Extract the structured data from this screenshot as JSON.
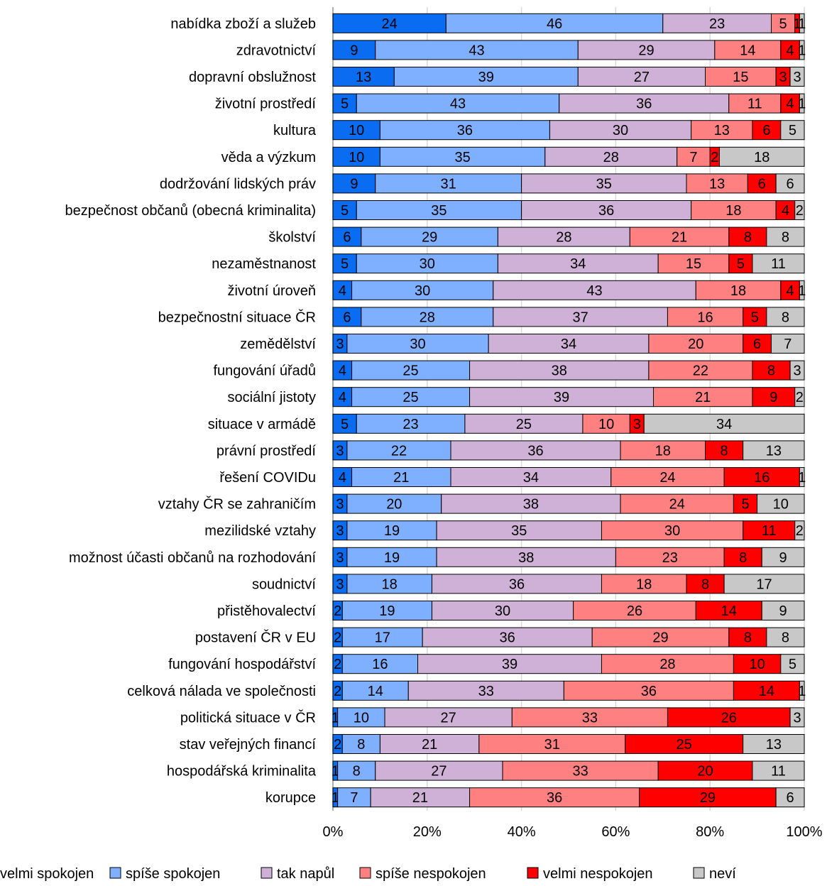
{
  "chart_data": {
    "type": "bar",
    "orientation": "horizontal",
    "stacked": "percent",
    "title": "",
    "xlabel": "",
    "ylabel": "",
    "xlim": [
      0,
      100
    ],
    "x_ticks": [
      "0%",
      "20%",
      "40%",
      "60%",
      "80%",
      "100%"
    ],
    "grid": "vertical",
    "legend_position": "bottom",
    "categories": [
      "nabídka zboží a služeb",
      "zdravotnictví",
      "dopravní obslužnost",
      "životní prostředí",
      "kultura",
      "věda a výzkum",
      "dodržování lidských práv",
      "bezpečnost občanů (obecná kriminalita)",
      "školství",
      "nezaměstnanost",
      "životní úroveň",
      "bezpečnostní situace ČR",
      "zemědělství",
      "fungování úřadů",
      "sociální jistoty",
      "situace v armádě",
      "právní prostředí",
      "řešení COVIDu",
      "vztahy ČR se zahraničím",
      "mezilidské vztahy",
      "možnost účasti občanů na rozhodování",
      "soudnictví",
      "přistěhovalectví",
      "postavení ČR v EU",
      "fungování hospodářství",
      "celková nálada ve společnosti",
      "politická situace v ČR",
      "stav veřejných financí",
      "hospodářská kriminalita",
      "korupce"
    ],
    "series": [
      {
        "name": "velmi spokojen",
        "color": "#0a6cf0",
        "values": [
          24,
          9,
          13,
          5,
          10,
          10,
          9,
          5,
          6,
          5,
          4,
          6,
          3,
          4,
          4,
          5,
          3,
          4,
          3,
          3,
          3,
          3,
          2,
          2,
          2,
          2,
          1,
          2,
          1,
          1
        ]
      },
      {
        "name": "spíše spokojen",
        "color": "#7fb0ff",
        "values": [
          46,
          43,
          39,
          43,
          36,
          35,
          31,
          35,
          29,
          30,
          30,
          28,
          30,
          25,
          25,
          23,
          22,
          21,
          20,
          19,
          19,
          18,
          19,
          17,
          16,
          14,
          10,
          8,
          8,
          7
        ]
      },
      {
        "name": "tak napůl",
        "color": "#cfb0d6",
        "values": [
          23,
          29,
          27,
          36,
          30,
          28,
          35,
          36,
          28,
          34,
          43,
          37,
          34,
          38,
          39,
          25,
          36,
          34,
          38,
          35,
          38,
          36,
          30,
          36,
          39,
          33,
          27,
          21,
          27,
          21
        ]
      },
      {
        "name": "spíše nespokojen",
        "color": "#ff8080",
        "values": [
          5,
          14,
          15,
          11,
          13,
          7,
          13,
          18,
          21,
          15,
          18,
          16,
          20,
          22,
          21,
          10,
          18,
          24,
          24,
          30,
          23,
          18,
          26,
          29,
          28,
          36,
          33,
          31,
          33,
          36
        ]
      },
      {
        "name": "velmi nespokojen",
        "color": "#ff0000",
        "values": [
          1,
          4,
          3,
          4,
          6,
          2,
          6,
          4,
          8,
          5,
          4,
          5,
          6,
          8,
          9,
          3,
          8,
          16,
          5,
          11,
          8,
          8,
          14,
          8,
          10,
          14,
          26,
          25,
          20,
          29
        ]
      },
      {
        "name": "neví",
        "color": "#c8c8c8",
        "values": [
          1,
          1,
          3,
          1,
          5,
          18,
          6,
          2,
          8,
          11,
          1,
          8,
          7,
          3,
          2,
          34,
          13,
          1,
          10,
          2,
          9,
          17,
          9,
          8,
          5,
          1,
          3,
          13,
          11,
          6
        ]
      }
    ]
  }
}
